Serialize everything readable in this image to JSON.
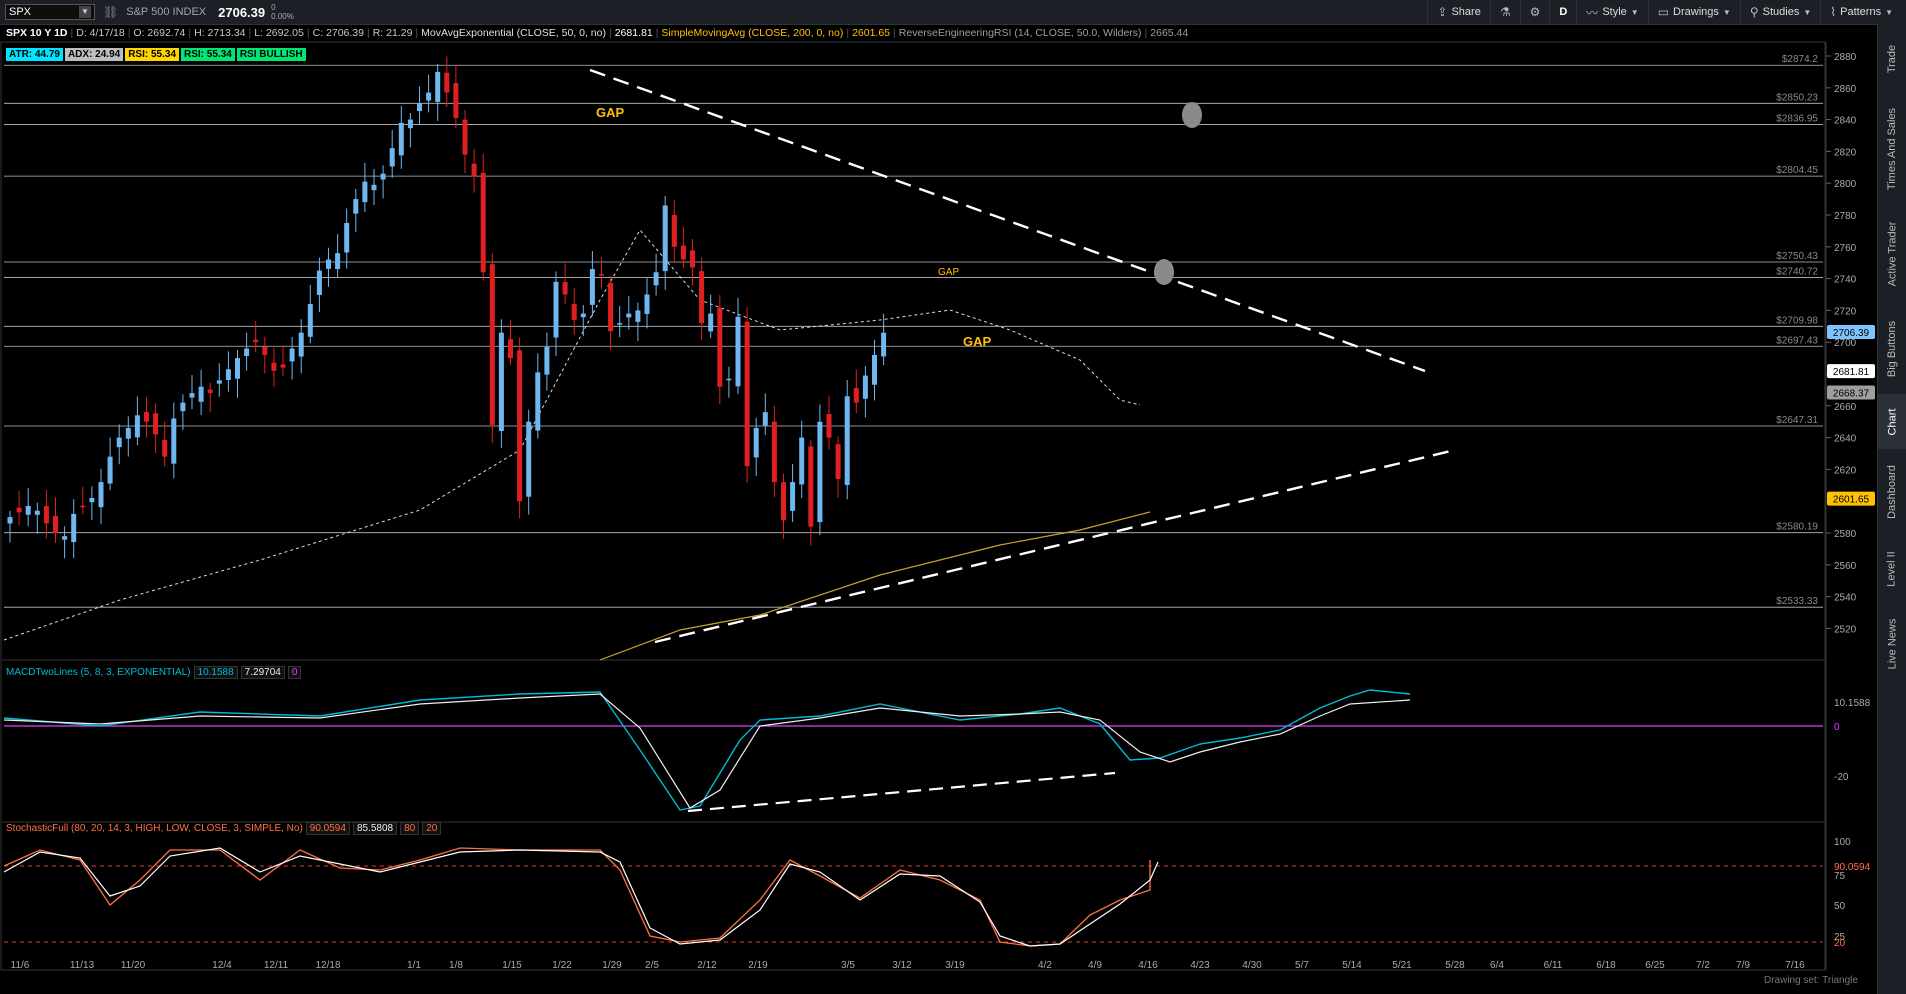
{
  "toolbar": {
    "symbol": "SPX",
    "name": "S&P 500 INDEX",
    "last": "2706.39",
    "change_top": "0",
    "change_bottom": "0.00%",
    "buttons": [
      {
        "label": "Share",
        "icon": "share-icon"
      },
      {
        "label": "",
        "icon": "flask-icon"
      },
      {
        "label": "",
        "icon": "gear-icon"
      },
      {
        "label": "D",
        "icon": "period-selector"
      },
      {
        "label": "Style",
        "icon": "style-icon"
      },
      {
        "label": "Drawings",
        "icon": "drawings-icon"
      },
      {
        "label": "Studies",
        "icon": "studies-icon"
      },
      {
        "label": "Patterns",
        "icon": "patterns-icon"
      }
    ]
  },
  "info": {
    "title": "SPX 10 Y 1D",
    "date": "D: 4/17/18",
    "open": "O: 2692.74",
    "high": "H: 2713.34",
    "low": "L: 2692.05",
    "close": "C: 2706.39",
    "range": "R: 21.29",
    "ema_label": "MovAvgExponential (CLOSE, 50, 0, no)",
    "ema_value": "2681.81",
    "sma_label": "SimpleMovingAvg (CLOSE, 200, 0, no)",
    "sma_value": "2601.65",
    "rsi_label": "ReverseEngineeringRSI (14, CLOSE, 50.0, Wilders)",
    "rsi_value": "2665.44"
  },
  "chips": [
    {
      "label": "ATR: 44.79",
      "color": "#00e5ff"
    },
    {
      "label": "ADX: 24.94",
      "color": "#bdbdbd"
    },
    {
      "label": "RSI: 55.34",
      "color": "#ffd600"
    },
    {
      "label": "RSI: 55.34",
      "color": "#00e676"
    },
    {
      "label": "RSI BULLISH",
      "color": "#00e676"
    }
  ],
  "side_tabs": [
    "Trade",
    "Times And Sales",
    "Active Trader",
    "Big Buttons",
    "Chart",
    "Dashboard",
    "Level II",
    "Live News"
  ],
  "price_axis": {
    "ticks": [
      "2880",
      "2860",
      "2840",
      "2820",
      "2800",
      "2780",
      "2760",
      "2740",
      "2720",
      "2700",
      "2680",
      "2660",
      "2640",
      "2620",
      "2600",
      "2580",
      "2560",
      "2540",
      "2520"
    ],
    "levels": [
      "$2874.2",
      "$2850.23",
      "$2836.95",
      "$2804.45",
      "$2750.43",
      "$2740.72",
      "$2709.98",
      "$2697.43",
      "$2647.31",
      "$2580.19",
      "$2533.33"
    ],
    "markers": [
      {
        "label": "2706.39",
        "color": "#7ec3ff"
      },
      {
        "label": "2681.81",
        "color": "#ffffff"
      },
      {
        "label": "2668.37",
        "color": "#9e9e9e"
      },
      {
        "label": "2601.65",
        "color": "#ffc107"
      }
    ],
    "annotations": [
      "GAP",
      "GAP",
      "GAP"
    ]
  },
  "macd": {
    "label": "MACDTwoLines (5, 8, 3, EXPONENTIAL)",
    "v1": "10.1588",
    "v2": "7.29704",
    "v3": "0",
    "axis": [
      "10.1588",
      "0",
      "-20"
    ]
  },
  "stoch": {
    "label": "StochasticFull (80, 20, 14, 3, HIGH, LOW, CLOSE, 3, SIMPLE, No)",
    "v1": "90.0594",
    "v2": "85.5808",
    "v3": "80",
    "v4": "20",
    "axis": [
      "100",
      "90.0594",
      "75",
      "50",
      "25",
      "20"
    ]
  },
  "dates": [
    "11/6",
    "11/13",
    "11/20",
    "12/4",
    "12/11",
    "12/18",
    "1/1",
    "1/8",
    "1/15",
    "1/22",
    "1/29",
    "2/5",
    "2/12",
    "2/19",
    "3/5",
    "3/12",
    "3/19",
    "4/2",
    "4/9",
    "4/16",
    "4/23",
    "4/30",
    "5/7",
    "5/14",
    "5/21",
    "5/28",
    "6/4",
    "6/11",
    "6/18",
    "6/25",
    "7/2",
    "7/9",
    "7/16"
  ],
  "status": "Drawing set: Triangle"
}
